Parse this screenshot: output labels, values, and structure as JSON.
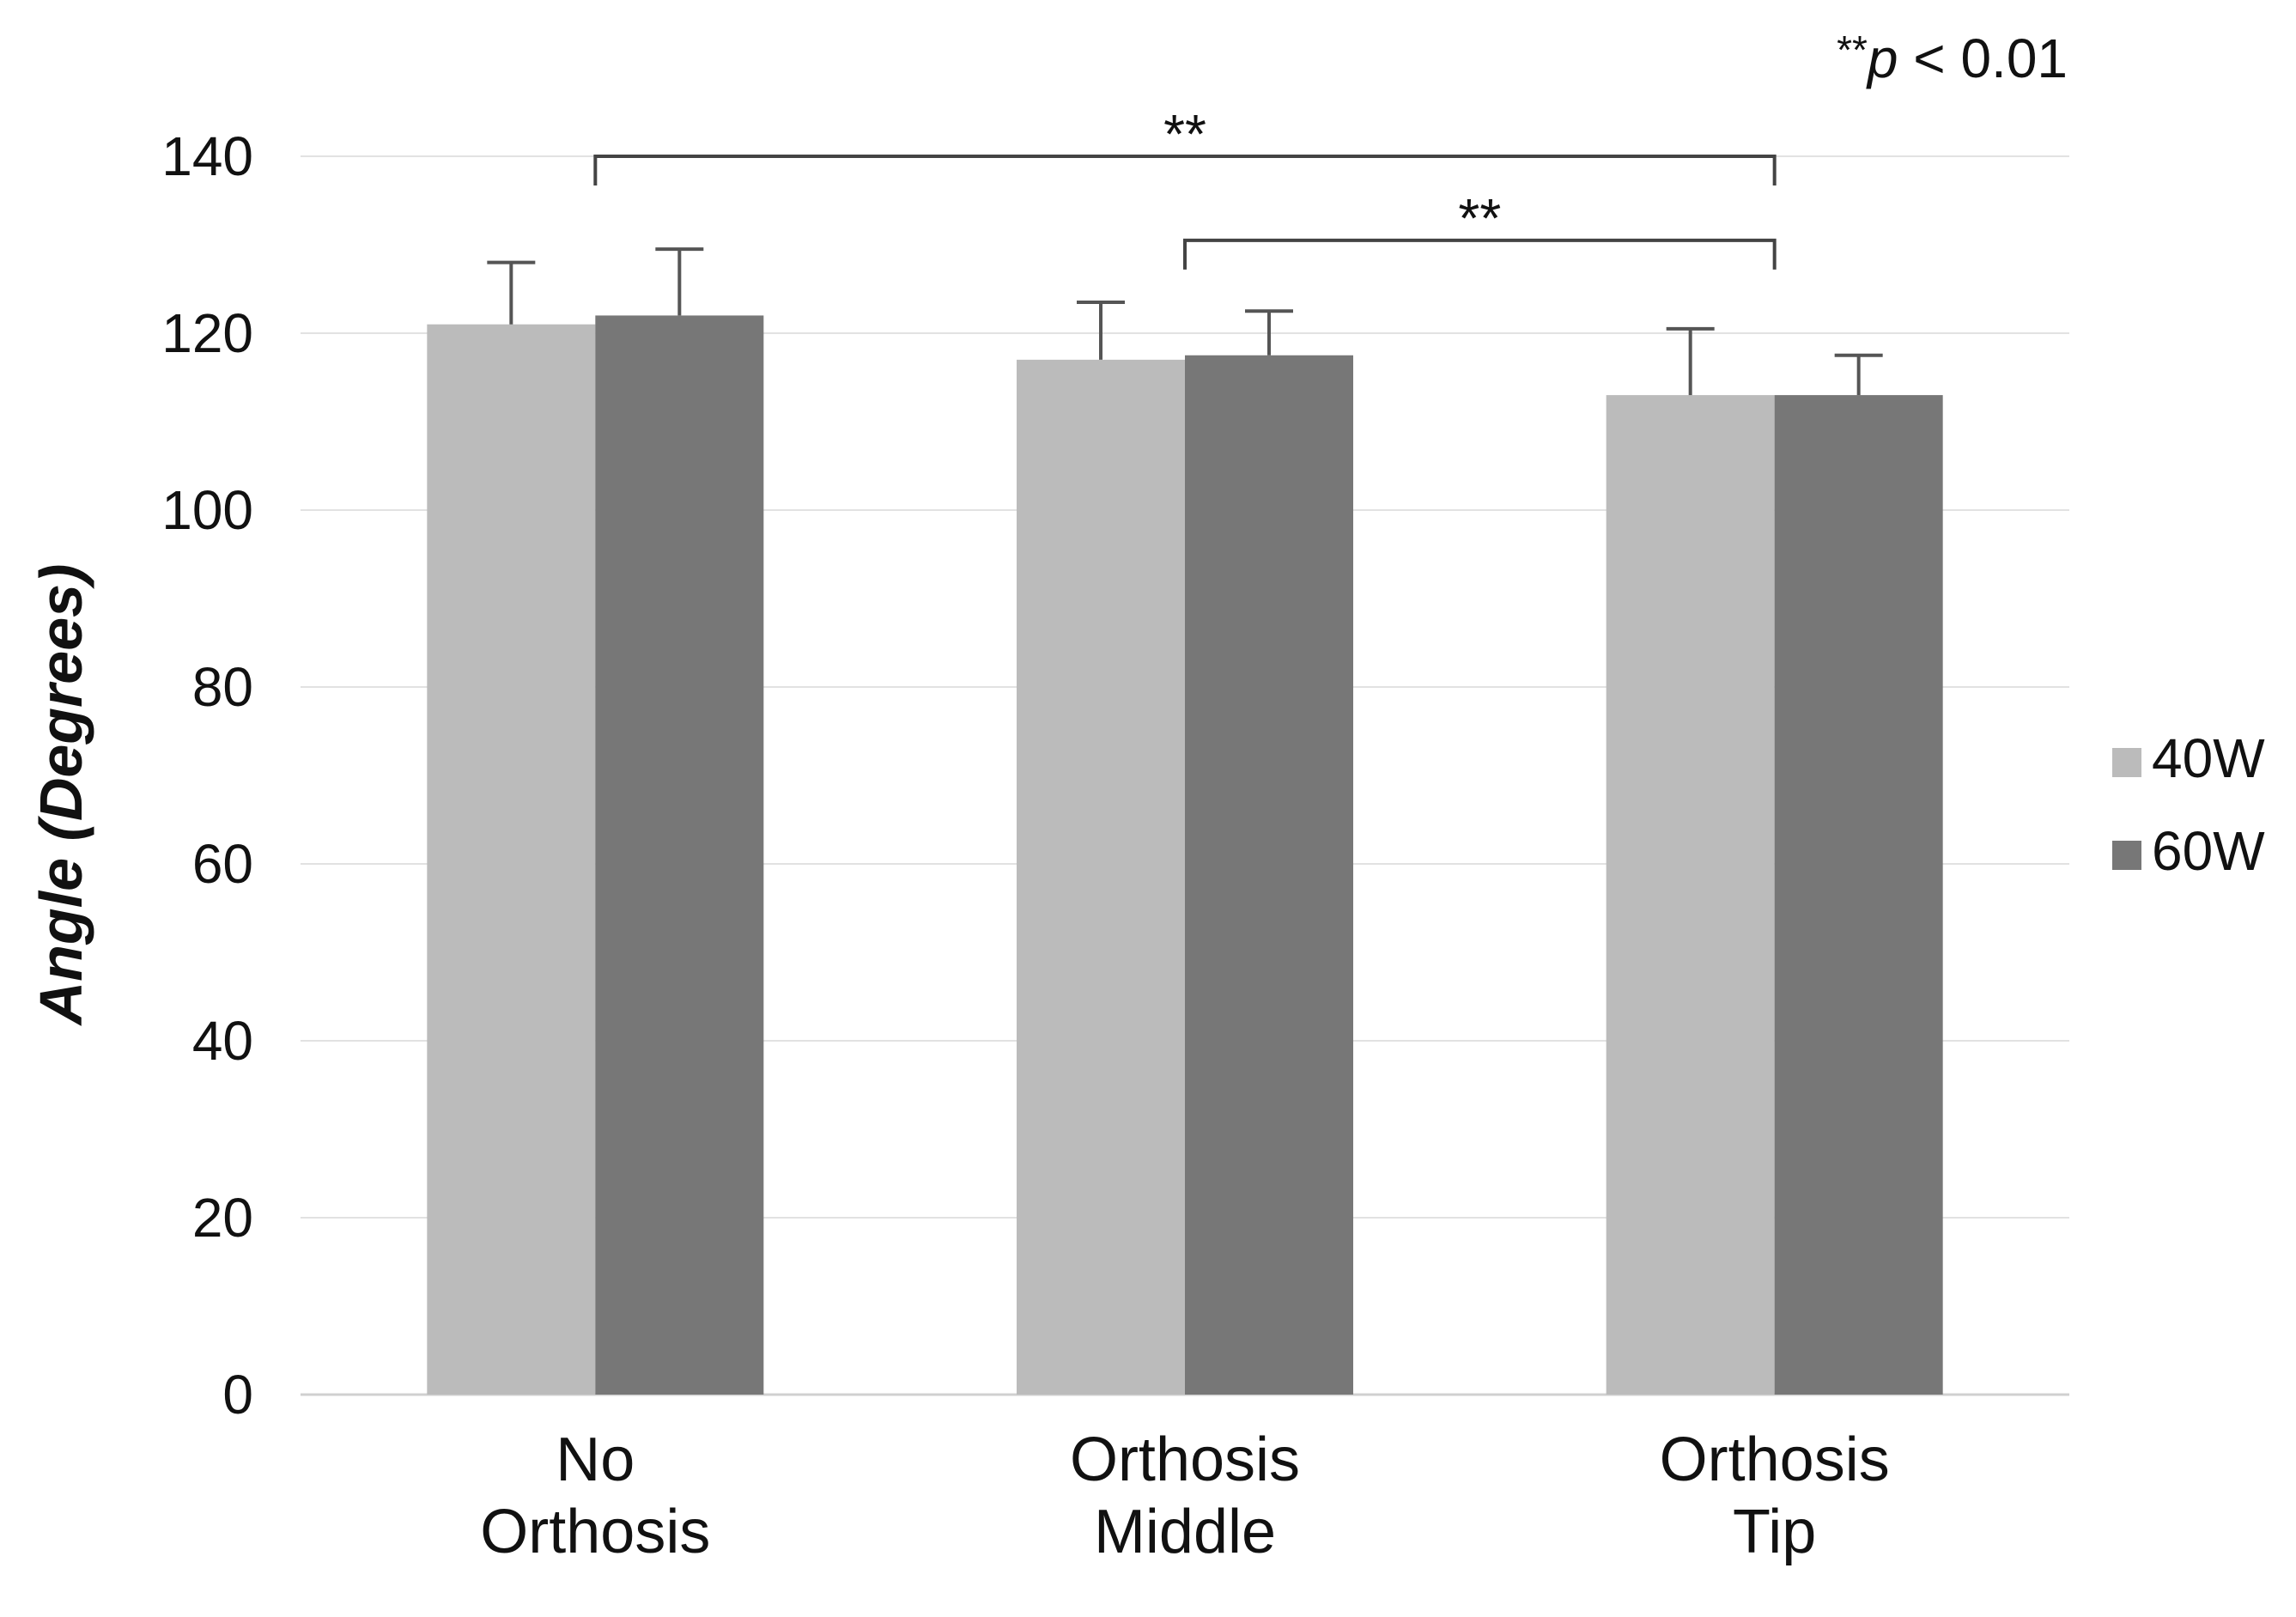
{
  "chart_data": {
    "type": "bar",
    "title": "",
    "xlabel": "",
    "ylabel": "Angle (Degrees)",
    "ylim": [
      0,
      140
    ],
    "yticks": [
      0,
      20,
      40,
      60,
      80,
      100,
      120,
      140
    ],
    "categories": [
      [
        "No",
        "Orthosis"
      ],
      [
        "Orthosis",
        "Middle"
      ],
      [
        "Orthosis",
        "Tip"
      ]
    ],
    "series": [
      {
        "name": "40W",
        "color": "#bbbbbb",
        "values": [
          121,
          117,
          113
        ],
        "errors": [
          7,
          6.5,
          7.5
        ]
      },
      {
        "name": "60W",
        "color": "#777777",
        "values": [
          122,
          117.5,
          113
        ],
        "errors": [
          7.5,
          5,
          4.5
        ]
      }
    ],
    "legend_position": "right",
    "grid": true,
    "significance": [
      {
        "from_category": 0,
        "to_category": 2,
        "y": 140,
        "label": "**"
      },
      {
        "from_category": 1,
        "to_category": 2,
        "y": 130.5,
        "label": "**"
      }
    ],
    "note": {
      "stars": "**",
      "p": "p",
      "rest": " < 0.01"
    }
  }
}
